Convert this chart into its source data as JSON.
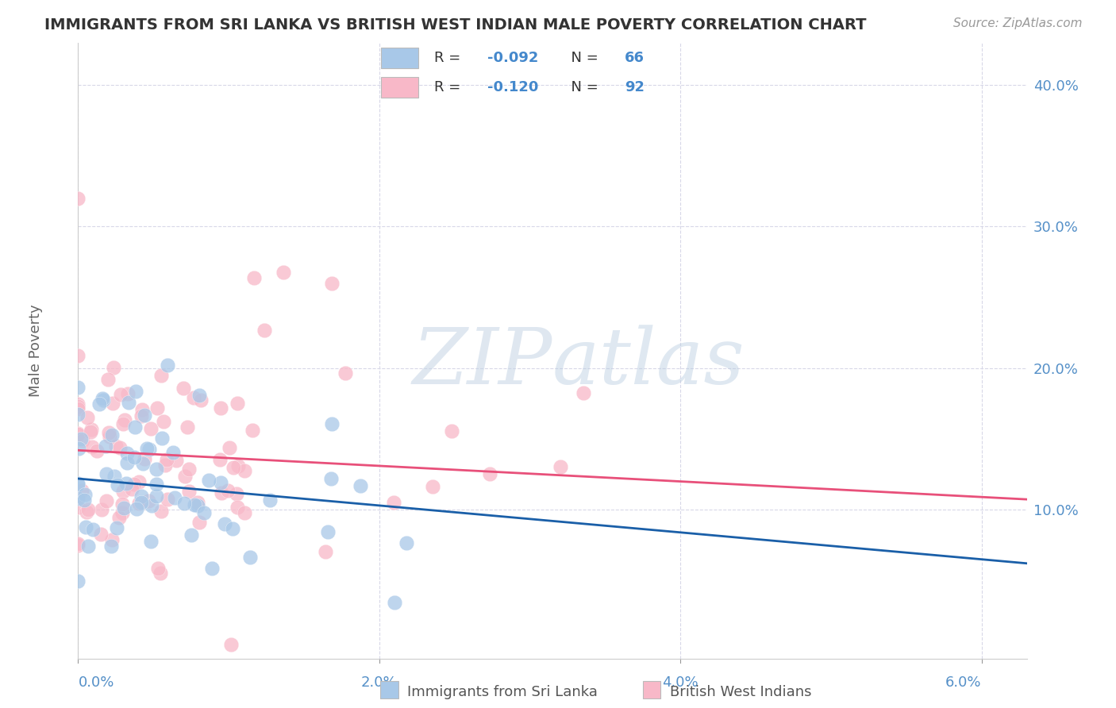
{
  "title": "IMMIGRANTS FROM SRI LANKA VS BRITISH WEST INDIAN MALE POVERTY CORRELATION CHART",
  "source": "Source: ZipAtlas.com",
  "ylabel": "Male Poverty",
  "y_tick_labels": [
    "10.0%",
    "20.0%",
    "30.0%",
    "40.0%"
  ],
  "y_tick_values": [
    0.1,
    0.2,
    0.3,
    0.4
  ],
  "x_tick_labels": [
    "0.0%",
    "2.0%",
    "4.0%",
    "6.0%"
  ],
  "x_tick_values": [
    0.0,
    0.02,
    0.04,
    0.06
  ],
  "x_range": [
    0.0,
    0.063
  ],
  "y_range": [
    -0.005,
    0.43
  ],
  "color_blue": "#a8c8e8",
  "color_pink": "#f8b8c8",
  "color_blue_line": "#1a5fa8",
  "color_pink_line": "#e8507a",
  "color_axis_text": "#5590c8",
  "color_grid": "#d8d8e8",
  "color_title": "#333333",
  "color_ylabel": "#666666",
  "color_source": "#999999",
  "color_legend_text": "#333333",
  "color_legend_rn": "#4488cc",
  "watermark_color": "#c8d8ea",
  "watermark_zip_color": "#c0c8d8",
  "sri_lanka_R": -0.092,
  "sri_lanka_N": 66,
  "bwi_R": -0.12,
  "bwi_N": 92,
  "sl_intercept": 0.122,
  "sl_slope": -0.95,
  "bwi_intercept": 0.142,
  "bwi_slope": -0.55
}
